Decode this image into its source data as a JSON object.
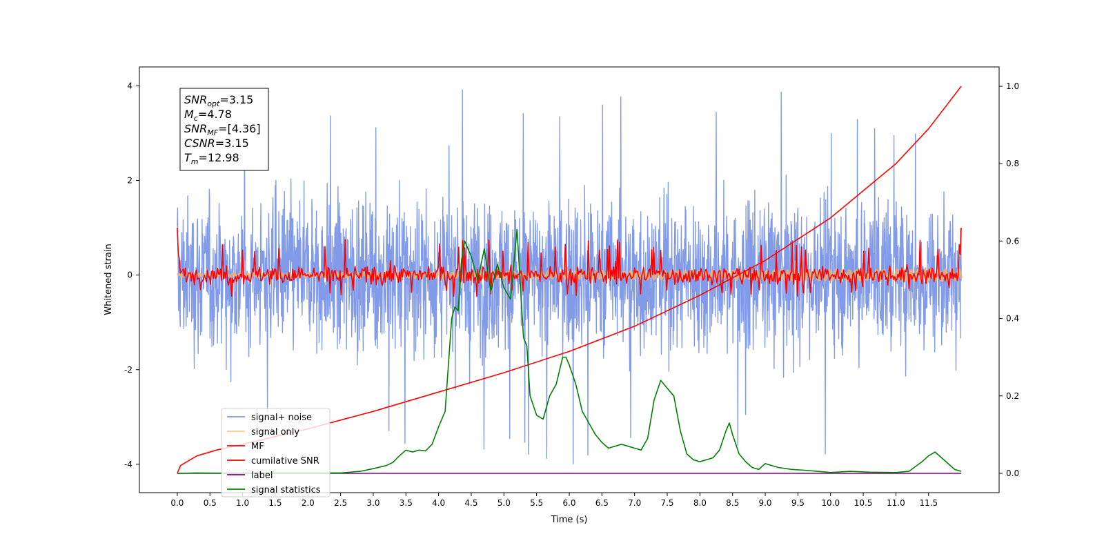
{
  "chart_data": {
    "type": "line",
    "title": "",
    "xlabel": "Time (s)",
    "ylabel": "Whitened strain",
    "xlim": [
      -0.58,
      12.58
    ],
    "ylim_left": [
      -4.6,
      4.4
    ],
    "ylim_right": [
      -0.05,
      1.05
    ],
    "x_ticks": [
      "0.0",
      "0.5",
      "1.0",
      "1.5",
      "2.0",
      "2.5",
      "3.0",
      "3.5",
      "4.0",
      "4.5",
      "5.0",
      "5.5",
      "6.0",
      "6.5",
      "7.0",
      "7.5",
      "8.0",
      "8.5",
      "9.0",
      "9.5",
      "10.0",
      "10.5",
      "11.0",
      "11.5"
    ],
    "y_ticks_left": [
      "-4",
      "-2",
      "0",
      "2",
      "4"
    ],
    "y_ticks_right": [
      "0.0",
      "0.2",
      "0.4",
      "0.6",
      "0.8",
      "1.0"
    ],
    "grid": false,
    "legend_position": "lower-left",
    "info_box": [
      {
        "base": "SNR",
        "sub": "opt",
        "value": "=3.15"
      },
      {
        "base": "M",
        "sub": "c",
        "value": "=4.78"
      },
      {
        "base": "SNR",
        "sub": "MF",
        "value": "=[4.36]"
      },
      {
        "base": "CSNR",
        "sub": "",
        "value": "=3.15"
      },
      {
        "base": "T",
        "sub": "m",
        "value": "=12.98"
      }
    ],
    "series": [
      {
        "name": "signal+ noise",
        "color": "#7b96e8",
        "axis": "left",
        "shape": "noise",
        "envelope_typical": 2.0,
        "envelope_peak": 4.0
      },
      {
        "name": "signal only",
        "color": "#f5b06a",
        "axis": "left",
        "shape": "band",
        "amplitude_start": 0.02,
        "amplitude_end": 0.12
      },
      {
        "name": "MF",
        "color": "#ff0000",
        "axis": "left",
        "shape": "noise",
        "envelope_typical": 0.3,
        "envelope_peak": 0.7,
        "x": [
          0.0,
          12.0
        ],
        "y_endpoints": [
          1.0,
          1.0
        ]
      },
      {
        "name": "cumilative SNR",
        "color": "#ff0000",
        "axis": "right",
        "x": [
          0.0,
          0.05,
          0.3,
          0.6,
          1.0,
          1.5,
          2.0,
          3.0,
          4.0,
          5.0,
          6.0,
          7.0,
          8.0,
          9.0,
          10.0,
          11.0,
          11.5,
          12.0
        ],
        "y": [
          0.0,
          0.02,
          0.045,
          0.06,
          0.075,
          0.095,
          0.115,
          0.16,
          0.21,
          0.26,
          0.315,
          0.38,
          0.46,
          0.55,
          0.66,
          0.8,
          0.89,
          1.0
        ]
      },
      {
        "name": "label",
        "color": "#800080",
        "axis": "right",
        "x": [
          0.0,
          12.0
        ],
        "y": [
          0.0,
          0.0
        ]
      },
      {
        "name": "signal statistics",
        "color": "#008000",
        "axis": "right",
        "x": [
          0.0,
          0.3,
          0.6,
          1.0,
          1.5,
          2.0,
          2.5,
          2.8,
          3.0,
          3.2,
          3.3,
          3.4,
          3.5,
          3.6,
          3.7,
          3.8,
          3.9,
          4.0,
          4.1,
          4.2,
          4.25,
          4.3,
          4.35,
          4.4,
          4.5,
          4.6,
          4.7,
          4.8,
          4.9,
          5.0,
          5.1,
          5.2,
          5.3,
          5.35,
          5.4,
          5.5,
          5.6,
          5.7,
          5.8,
          5.9,
          5.95,
          6.0,
          6.1,
          6.2,
          6.3,
          6.4,
          6.5,
          6.6,
          6.7,
          6.8,
          6.9,
          7.0,
          7.1,
          7.2,
          7.3,
          7.4,
          7.5,
          7.6,
          7.7,
          7.8,
          7.9,
          8.0,
          8.2,
          8.3,
          8.4,
          8.45,
          8.5,
          8.6,
          8.7,
          8.8,
          8.9,
          9.0,
          9.2,
          9.4,
          9.6,
          9.8,
          10.0,
          10.3,
          10.6,
          11.0,
          11.2,
          11.4,
          11.5,
          11.6,
          11.7,
          11.8,
          11.9,
          12.0
        ],
        "y": [
          0.0,
          0.001,
          0.0005,
          0.001,
          0.001,
          0.001,
          0.001,
          0.005,
          0.012,
          0.02,
          0.028,
          0.045,
          0.06,
          0.055,
          0.06,
          0.058,
          0.075,
          0.12,
          0.16,
          0.4,
          0.43,
          0.42,
          0.55,
          0.6,
          0.56,
          0.5,
          0.58,
          0.47,
          0.54,
          0.48,
          0.45,
          0.63,
          0.35,
          0.33,
          0.2,
          0.15,
          0.14,
          0.2,
          0.23,
          0.3,
          0.3,
          0.28,
          0.23,
          0.16,
          0.13,
          0.1,
          0.08,
          0.065,
          0.07,
          0.075,
          0.07,
          0.065,
          0.06,
          0.09,
          0.19,
          0.24,
          0.22,
          0.2,
          0.11,
          0.05,
          0.035,
          0.03,
          0.04,
          0.06,
          0.11,
          0.13,
          0.1,
          0.05,
          0.03,
          0.015,
          0.01,
          0.025,
          0.015,
          0.01,
          0.008,
          0.005,
          0.002,
          0.005,
          0.003,
          0.002,
          0.005,
          0.03,
          0.045,
          0.055,
          0.04,
          0.025,
          0.01,
          0.005
        ]
      }
    ]
  }
}
